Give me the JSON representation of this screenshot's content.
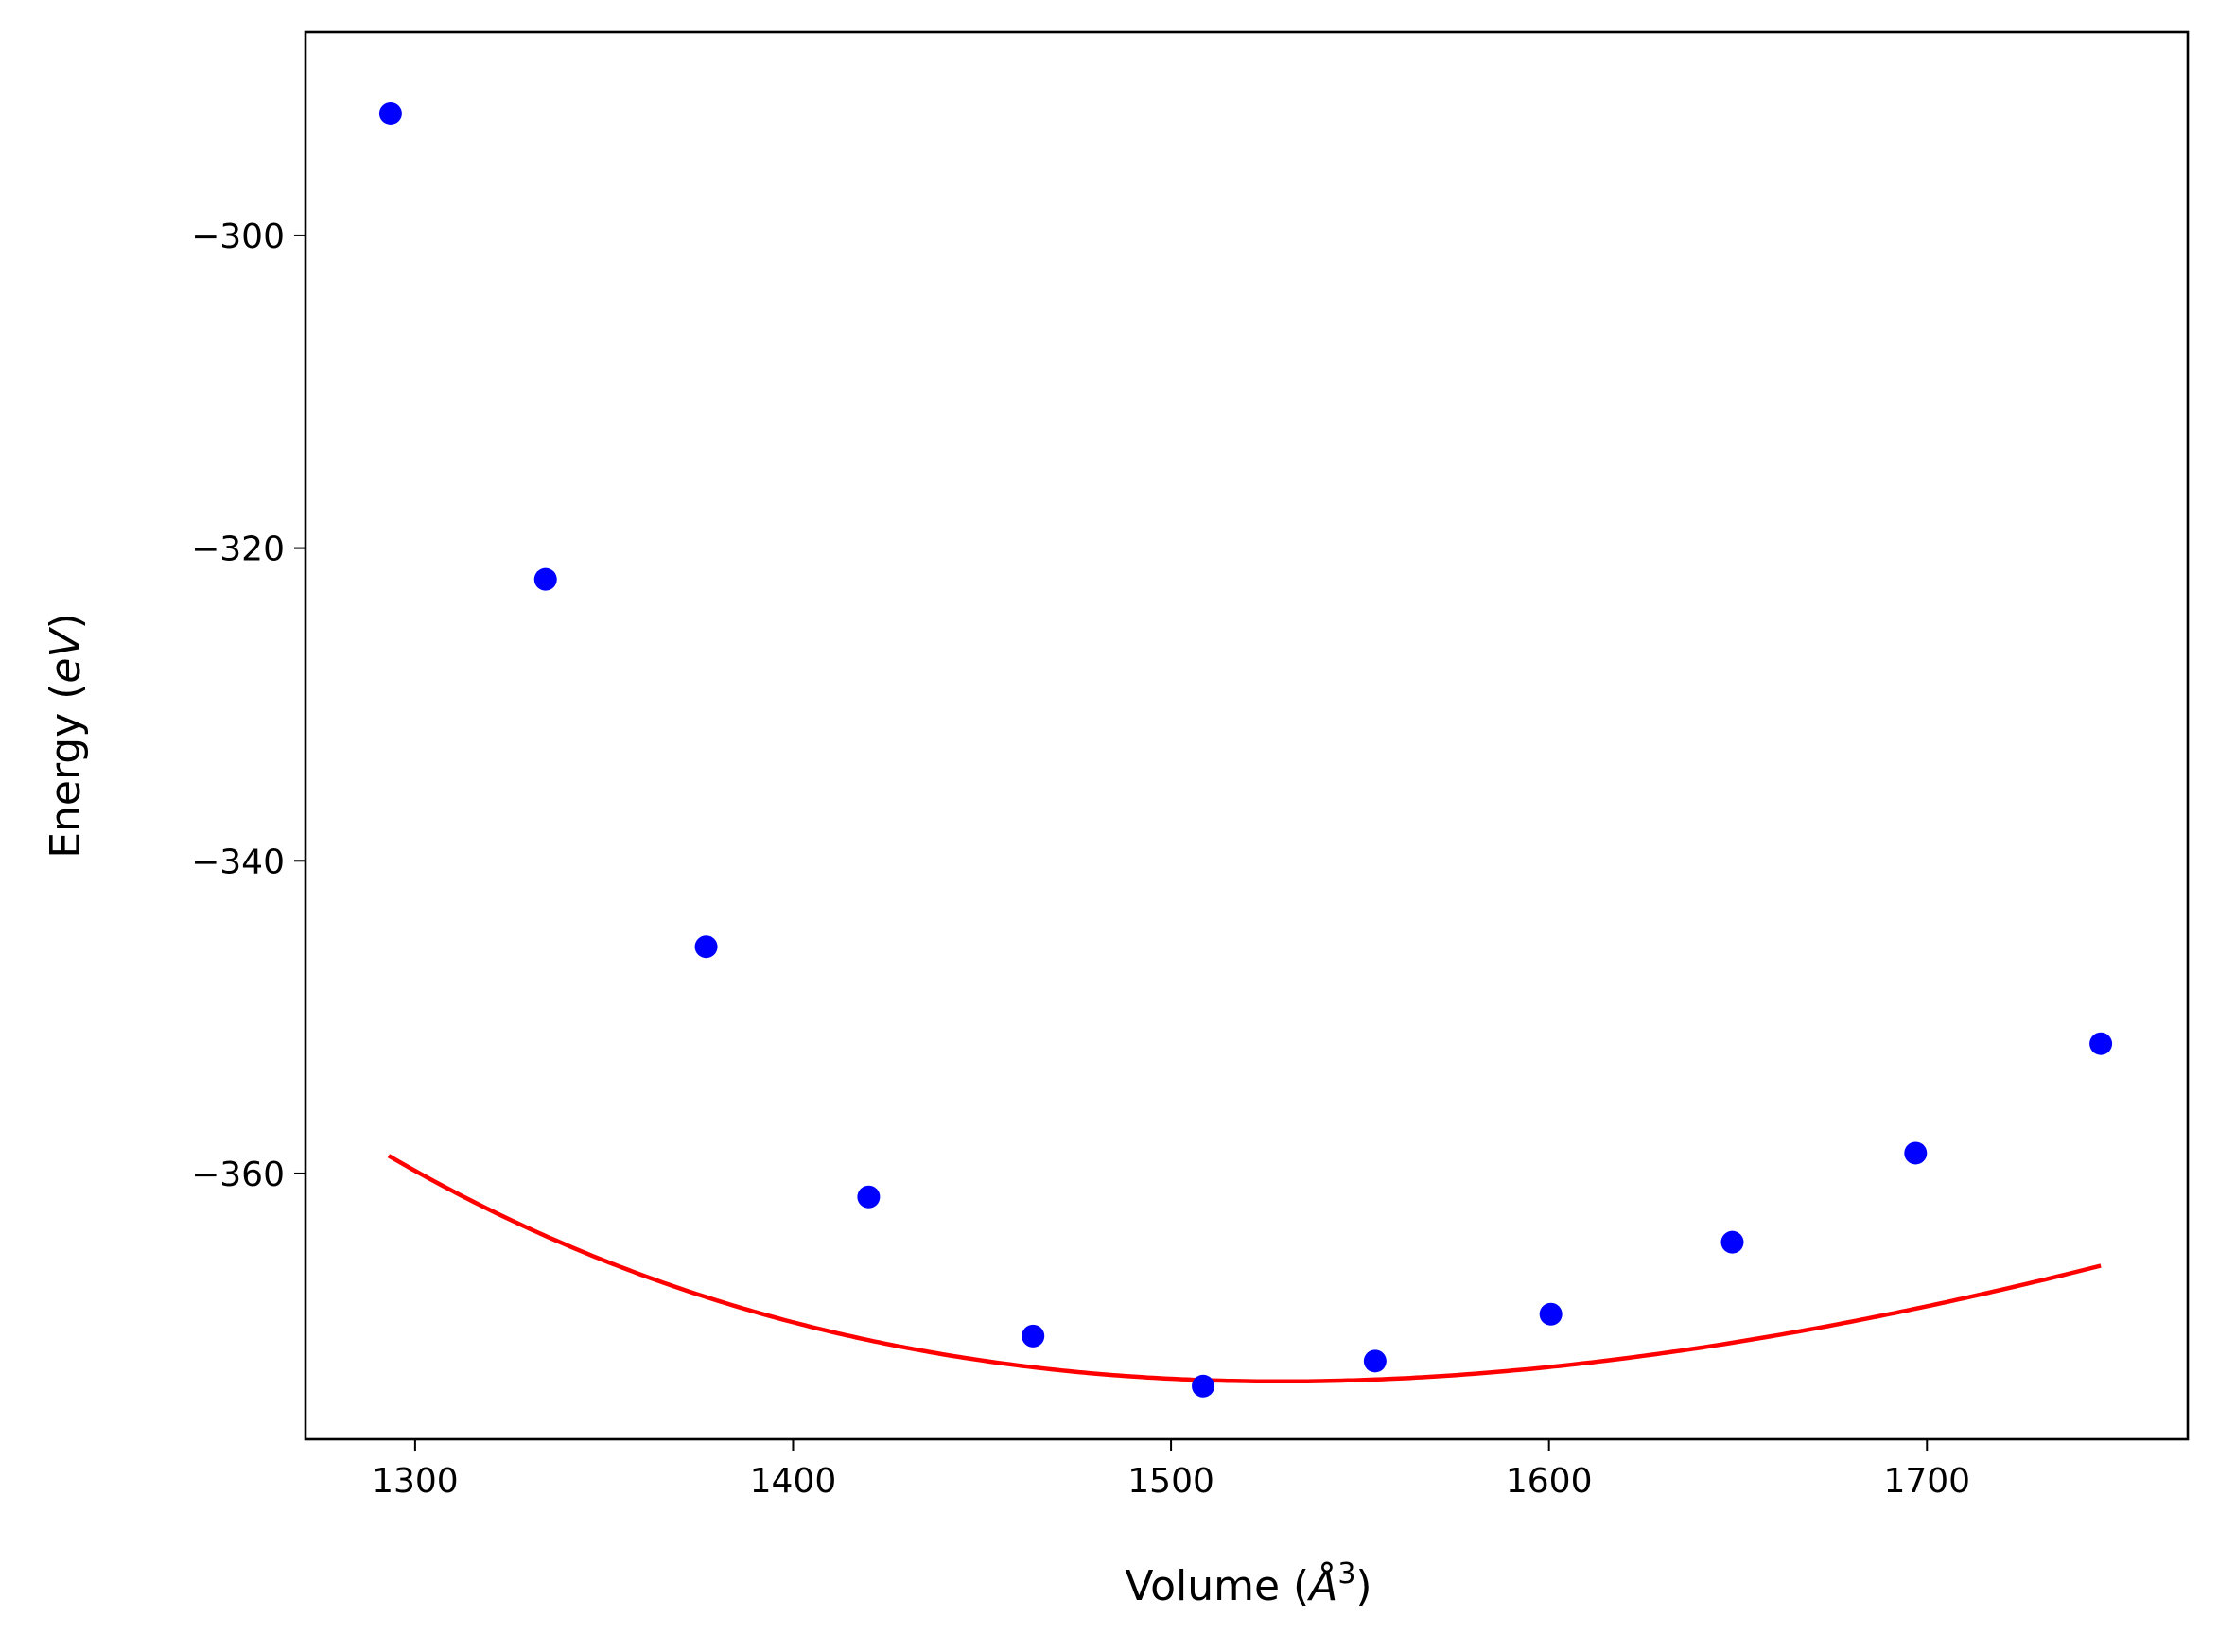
{
  "chart_data": {
    "type": "scatter",
    "title": "",
    "xlabel_main": "Volume (",
    "xlabel_unit": "Å",
    "xlabel_sup": "3",
    "xlabel_close": ")",
    "ylabel_main": "Energy (",
    "ylabel_unit": "eV",
    "ylabel_close": ")",
    "xlim": [
      1271,
      1769
    ],
    "ylim": [
      -377,
      -287
    ],
    "xticks": [
      1300,
      1400,
      1500,
      1600,
      1700
    ],
    "xtick_labels": [
      "1300",
      "1400",
      "1500",
      "1600",
      "1700"
    ],
    "yticks": [
      -300,
      -320,
      -340,
      -360
    ],
    "ytick_labels": [
      "−300",
      "−320",
      "−340",
      "−360"
    ],
    "grid": false,
    "series": [
      {
        "kind": "points",
        "color": "#0000ff",
        "x": [
          1293.5,
          1334.5,
          1377,
          1420,
          1463.5,
          1508.5,
          1554,
          1600.5,
          1648.5,
          1697,
          1746
        ],
        "y": [
          -292.2,
          -322,
          -345.5,
          -361.5,
          -370.4,
          -373.6,
          -372,
          -369,
          -364.4,
          -358.7,
          -351.7
        ]
      },
      {
        "kind": "fit",
        "color": "#ff0000",
        "model": "birch-murnaghan",
        "params": {
          "E0": -373.3,
          "V0": 1529,
          "B0": 0.6,
          "B0p": 4.0
        },
        "x_range": [
          1293,
          1746
        ]
      }
    ]
  }
}
